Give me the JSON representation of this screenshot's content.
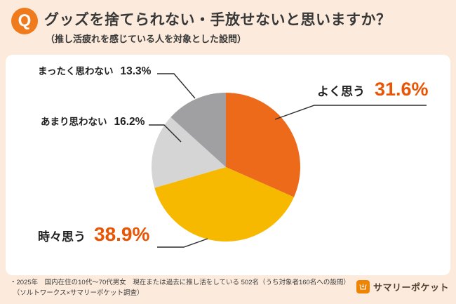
{
  "header": {
    "q_badge": "Q",
    "title": "グッズを捨てられない・手放せないと思いますか？",
    "subtitle": "（推し活疲れを感じている人を対象とした設問）"
  },
  "chart_data": {
    "type": "pie",
    "title": "グッズを捨てられない・手放せないと思いますか？",
    "subtitle": "（推し活疲れを感じている人を対象とした設問）",
    "direction": "clockwise",
    "start_angle_deg": 0,
    "legend_position": "callout-labels",
    "segments": [
      {
        "label": "よく思う",
        "value": 31.6,
        "display": "31.6%",
        "color": "#ed6a1b"
      },
      {
        "label": "時々思う",
        "value": 38.9,
        "display": "38.9%",
        "color": "#f6b900"
      },
      {
        "label": "あまり思わない",
        "value": 16.2,
        "display": "16.2%",
        "color": "#d5d5d5"
      },
      {
        "label": "まったく思わない",
        "value": 13.3,
        "display": "13.3%",
        "color": "#a0a0a2"
      }
    ]
  },
  "colors": {
    "background": "#fcebdc",
    "card": "#ffffff",
    "accent_percent_text": "#e85504",
    "q_badge": "#f07b1d",
    "logo_orange": "#f08300"
  },
  "footer": {
    "note_line1": "・2025年　国内在住の10代〜70代男女　現在または過去に推し活をしている 502名（うち対象者160名への設問）",
    "note_line2": "　（ソルトワークス×サマリーポケット調査）",
    "logo_text": "サマリーポケット"
  }
}
